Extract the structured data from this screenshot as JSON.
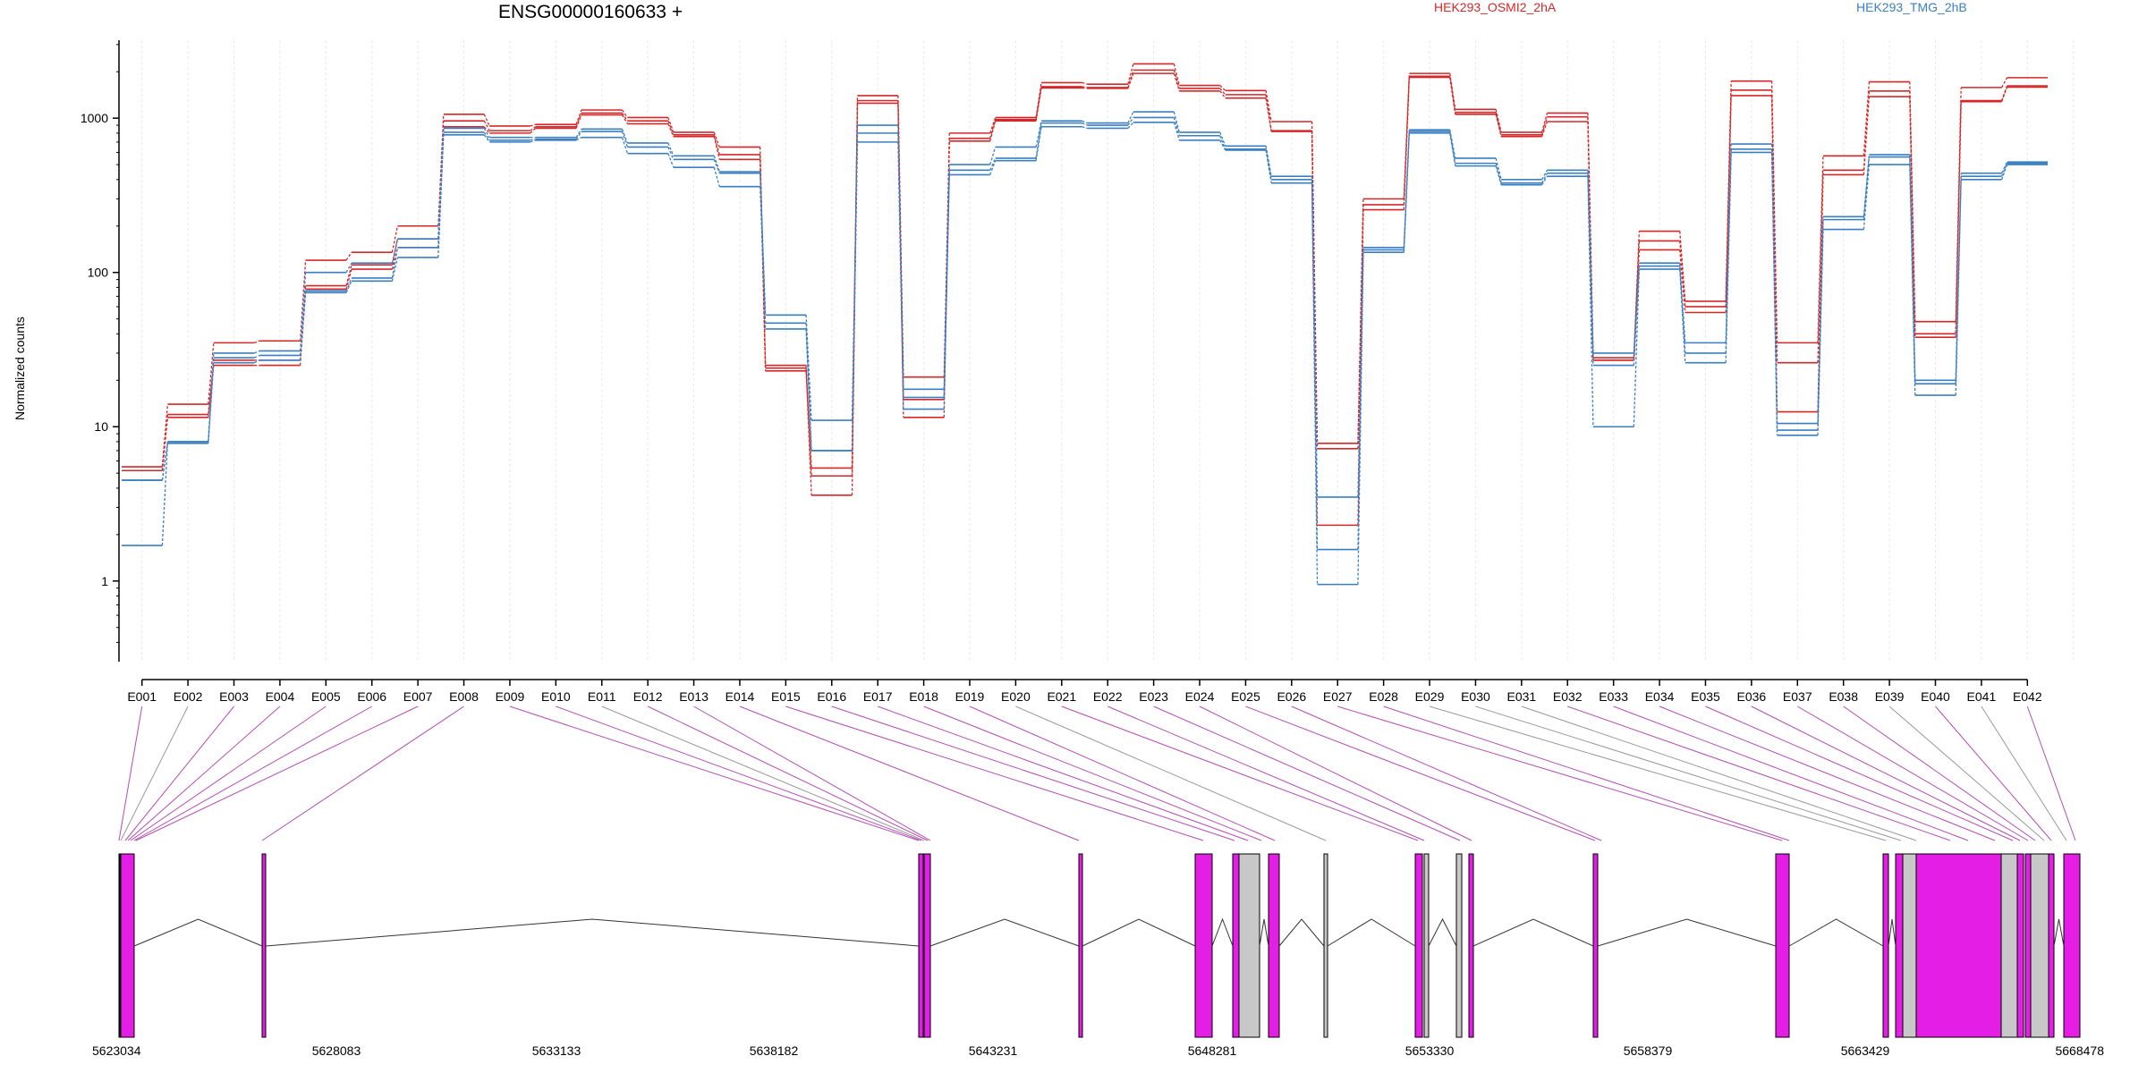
{
  "chart_data": {
    "type": "line",
    "title": "ENSG00000160633 +",
    "ylabel": "Normalized counts",
    "yscale": "log",
    "ylim": [
      0.3,
      3200
    ],
    "yticks": [
      "1",
      "10",
      "100",
      "1000"
    ],
    "categories": [
      "E001",
      "E002",
      "E003",
      "E004",
      "E005",
      "E006",
      "E007",
      "E008",
      "E009",
      "E010",
      "E011",
      "E012",
      "E013",
      "E014",
      "E015",
      "E016",
      "E017",
      "E018",
      "E019",
      "E020",
      "E021",
      "E022",
      "E023",
      "E024",
      "E025",
      "E026",
      "E027",
      "E028",
      "E029",
      "E030",
      "E031",
      "E032",
      "E033",
      "E034",
      "E035",
      "E036",
      "E037",
      "E038",
      "E039",
      "E040",
      "E041",
      "E042"
    ],
    "legend": [
      {
        "name": "HEK293_OSMI2_2hA",
        "color": "#d62728"
      },
      {
        "name": "HEK293_TMG_2hB",
        "color": "#3a7fc1"
      }
    ],
    "series": [
      {
        "name": "HEK293_OSMI2_2hA",
        "color": "#d62728",
        "values": [
          5.5,
          14,
          35,
          36,
          120,
          135,
          200,
          1060,
          890,
          910,
          1130,
          1010,
          810,
          650,
          25,
          4.8,
          1400,
          21,
          800,
          1010,
          1700,
          1660,
          2250,
          1630,
          1510,
          950,
          7.8,
          300,
          1950,
          1140,
          810,
          1080,
          28,
          185,
          65,
          1740,
          35,
          570,
          1720,
          48,
          1580,
          1830
        ]
      },
      {
        "name": "HEK293_OSMI2_2hA",
        "color": "#d62728",
        "values": [
          5.2,
          12,
          27,
          27,
          82,
          112,
          165,
          960,
          830,
          880,
          1080,
          960,
          780,
          580,
          24,
          3.6,
          1300,
          15,
          740,
          980,
          1600,
          1580,
          2050,
          1560,
          1420,
          830,
          7.2,
          275,
          1870,
          1090,
          780,
          1020,
          27,
          160,
          60,
          1520,
          26,
          460,
          1500,
          40,
          1300,
          1620
        ]
      },
      {
        "name": "HEK293_OSMI2_2hA",
        "color": "#d62728",
        "values": [
          5.2,
          11.5,
          25,
          25,
          78,
          105,
          145,
          880,
          800,
          860,
          1050,
          920,
          760,
          540,
          23,
          5.4,
          1250,
          11.5,
          710,
          960,
          1570,
          1560,
          1950,
          1500,
          1350,
          820,
          2.3,
          255,
          1840,
          1060,
          760,
          950,
          27,
          140,
          55,
          1400,
          12.5,
          430,
          1380,
          38,
          1280,
          1590
        ]
      },
      {
        "name": "HEK293_TMG_2hB",
        "color": "#3a7fc1",
        "values": [
          1.7,
          8,
          30,
          31,
          100,
          115,
          165,
          860,
          750,
          750,
          850,
          690,
          570,
          450,
          53,
          11,
          900,
          17.5,
          500,
          650,
          960,
          930,
          1100,
          810,
          660,
          420,
          3.5,
          145,
          840,
          550,
          400,
          460,
          30,
          115,
          35,
          680,
          10.5,
          230,
          580,
          20,
          440,
          520
        ]
      },
      {
        "name": "HEK293_TMG_2hB",
        "color": "#3a7fc1",
        "values": [
          4.5,
          8,
          28,
          29,
          76,
          92,
          145,
          810,
          720,
          730,
          820,
          650,
          540,
          440,
          47,
          7,
          800,
          15.5,
          460,
          550,
          930,
          900,
          1010,
          770,
          630,
          400,
          1.6,
          140,
          820,
          510,
          380,
          440,
          25,
          110,
          30,
          630,
          9.5,
          220,
          560,
          19,
          420,
          510
        ]
      },
      {
        "name": "HEK293_TMG_2hB",
        "color": "#3a7fc1",
        "values": [
          4.5,
          7.8,
          26,
          27,
          74,
          88,
          125,
          780,
          700,
          720,
          750,
          590,
          480,
          360,
          43,
          7,
          700,
          13,
          430,
          530,
          880,
          860,
          940,
          720,
          620,
          380,
          0.95,
          135,
          800,
          490,
          370,
          420,
          10,
          105,
          26,
          600,
          8.8,
          190,
          500,
          16,
          400,
          500
        ]
      }
    ],
    "gene_model": {
      "coordinates": [
        "5623034",
        "5628083",
        "5633133",
        "5638182",
        "5643231",
        "5648281",
        "5653330",
        "5658379",
        "5663429",
        "5668478"
      ]
    }
  }
}
